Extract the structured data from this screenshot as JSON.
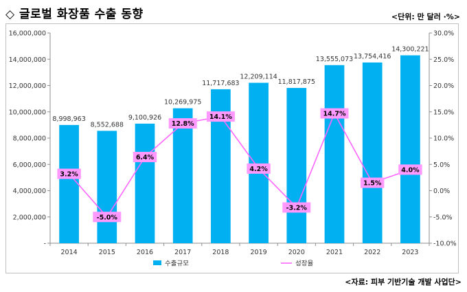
{
  "header": {
    "title": "◇ 글로벌 화장품 수출 동향",
    "unit": "<단위: 만 달러 ·%>"
  },
  "footer": {
    "source": "<자료: 피부 기반기술 개발 사업단>"
  },
  "colors": {
    "bar": "#00b0f0",
    "line": "#ff66ff",
    "label_bg": "#ff99ff"
  },
  "chart_data": {
    "type": "bar",
    "categories": [
      "2014",
      "2015",
      "2016",
      "2017",
      "2018",
      "2019",
      "2020",
      "2021",
      "2022",
      "2023"
    ],
    "series": [
      {
        "name": "수출규모",
        "type": "bar",
        "axis": "left",
        "values": [
          8998963,
          8552688,
          9100926,
          10269975,
          11717683,
          12209114,
          11817875,
          13555073,
          13754416,
          14300221
        ],
        "labels": [
          "8,998,963",
          "8,552,688",
          "9,100,926",
          "10,269,975",
          "11,717,683",
          "12,209,114",
          "11,817,875",
          "13,555,073",
          "13,754,416",
          "14,300,221"
        ]
      },
      {
        "name": "성장율",
        "type": "line",
        "axis": "right",
        "values": [
          3.2,
          -5.0,
          6.4,
          12.8,
          14.1,
          4.2,
          -3.2,
          14.7,
          1.5,
          4.0
        ],
        "labels": [
          "3.2%",
          "-5.0%",
          "6.4%",
          "12.8%",
          "14.1%",
          "4.2%",
          "-3.2%",
          "14.7%",
          "1.5%",
          "4.0%"
        ]
      }
    ],
    "ylim": [
      0,
      16000000
    ],
    "y2lim": [
      -10,
      30
    ],
    "yticks": [
      "16,000,000",
      "14,000,000",
      "12,000,000",
      "10,000,000",
      "8,000,000",
      "6,000,000",
      "4,000,000",
      "2,000,000",
      "-"
    ],
    "y2ticks": [
      "30.0%",
      "25.0%",
      "20.0%",
      "15.0%",
      "10.0%",
      "5.0%",
      "0.0%",
      "-5.0%",
      "-10.0%"
    ],
    "grid": false,
    "legend_position": "bottom"
  }
}
